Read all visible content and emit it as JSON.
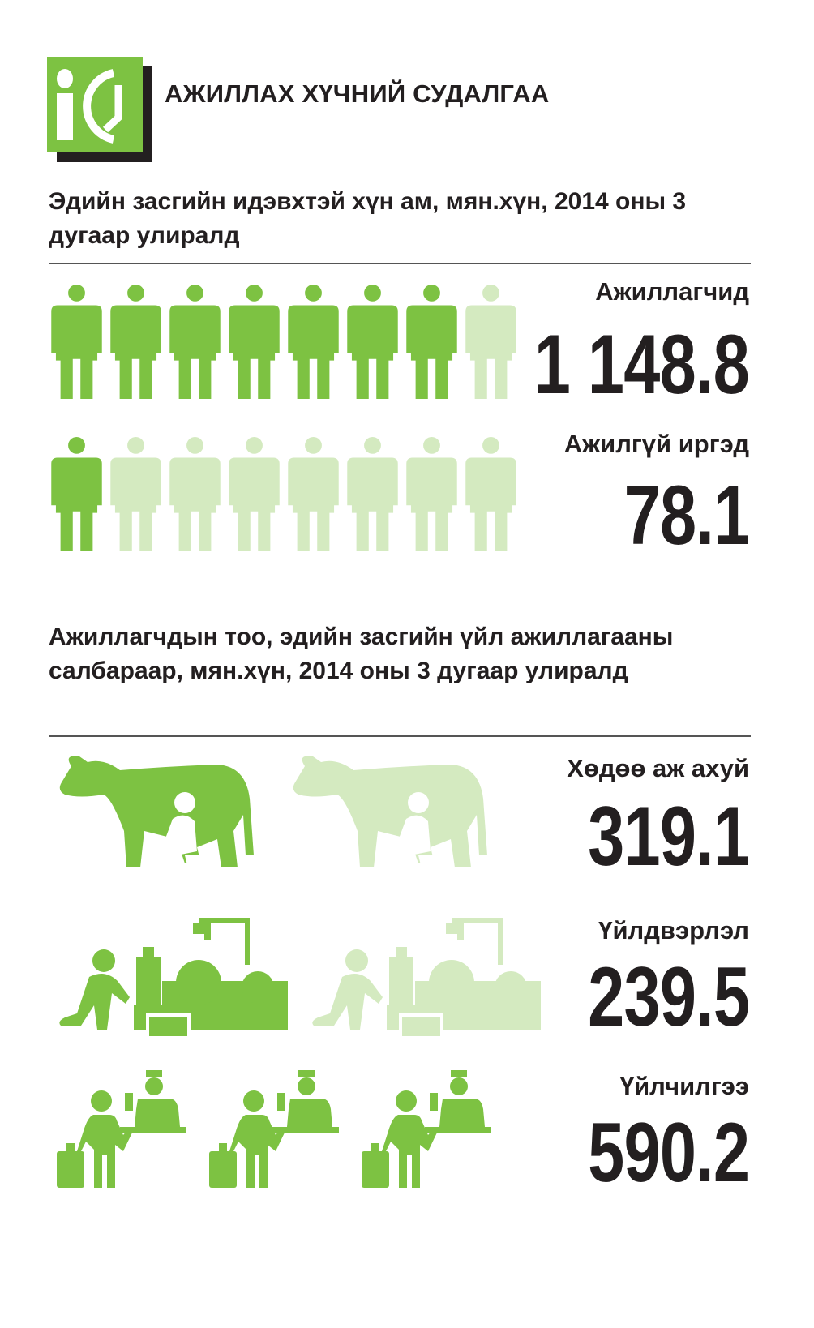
{
  "header": {
    "title": "АЖИЛЛАХ ХҮЧНИЙ СУДАЛГАА",
    "logo_text": "ic"
  },
  "colors": {
    "accent": "#7dc242",
    "accent_light": "#d4eac0",
    "text": "#231f20"
  },
  "section1": {
    "heading": "Эдийн засгийн идэвхтэй хүн ам, мян.хүн, 2014 оны 3 дугаар улиралд",
    "rows": [
      {
        "label": "Ажиллагчид",
        "value": "1 148.8",
        "icon": "person-icon",
        "icons_total": 8,
        "icons_filled": 7
      },
      {
        "label": "Ажилгүй иргэд",
        "value": "78.1",
        "icon": "person-icon",
        "icons_total": 8,
        "icons_filled": 1
      }
    ]
  },
  "section2": {
    "heading": "Ажиллагчдын тоо, эдийн засгийн үйл ажиллагааны салбараар, мян.хүн, 2014 оны 3 дугаар улиралд",
    "rows": [
      {
        "label": "Хөдөө аж ахуй",
        "value": "319.1",
        "icon": "cow-milking-icon",
        "icons_total": 2,
        "icons_filled": 1
      },
      {
        "label": "Үйлдвэрлэл",
        "value": "239.5",
        "icon": "factory-worker-icon",
        "icons_total": 2,
        "icons_filled": 1
      },
      {
        "label": "Үйлчилгээ",
        "value": "590.2",
        "icon": "service-desk-icon",
        "icons_total": 3,
        "icons_filled": 3
      }
    ]
  }
}
